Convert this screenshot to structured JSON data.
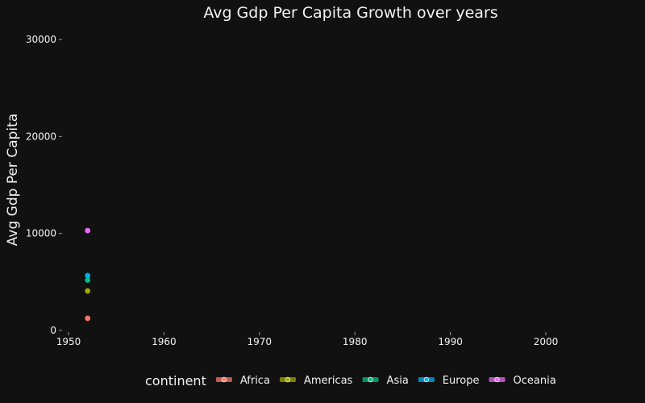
{
  "chart_data": {
    "type": "scatter",
    "title": "Avg Gdp Per Capita Growth over years",
    "xlabel": "",
    "ylabel": "Avg Gdp Per Capita",
    "xlim": [
      1950,
      2000
    ],
    "ylim": [
      0,
      30000
    ],
    "x_ticks": [
      1950,
      1960,
      1970,
      1980,
      1990,
      2000
    ],
    "y_ticks": [
      0,
      10000,
      20000,
      30000
    ],
    "grid": false,
    "legend": {
      "title": "continent",
      "placement": "bottom"
    },
    "series": [
      {
        "name": "Africa",
        "color": "#f8766d",
        "points": [
          {
            "x": 1952,
            "y": 1253
          }
        ]
      },
      {
        "name": "Americas",
        "color": "#a3a500",
        "points": [
          {
            "x": 1952,
            "y": 4079
          }
        ]
      },
      {
        "name": "Asia",
        "color": "#00bf7d",
        "points": [
          {
            "x": 1952,
            "y": 5195
          }
        ]
      },
      {
        "name": "Europe",
        "color": "#00b0f6",
        "points": [
          {
            "x": 1952,
            "y": 5661
          }
        ]
      },
      {
        "name": "Oceania",
        "color": "#e76bf3",
        "points": [
          {
            "x": 1952,
            "y": 10298
          }
        ]
      }
    ]
  }
}
